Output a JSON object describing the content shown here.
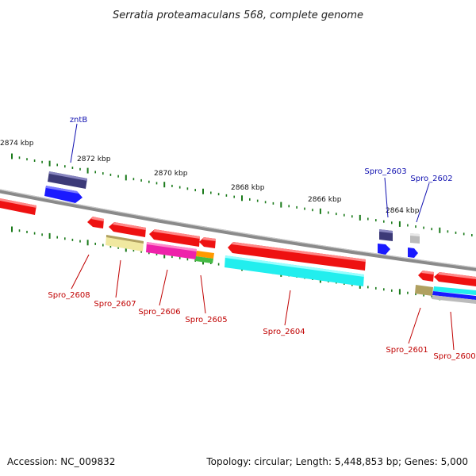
{
  "title": "Serratia proteamaculans 568, complete genome",
  "footer": {
    "accession": "Accession: NC_009832",
    "topology": "Topology: circular; Length: 5,448,853 bp; Genes: 5,000"
  },
  "colors": {
    "backbone": "#808080",
    "tick": "#1a7a1a",
    "forward_dark": "#3c3a78",
    "forward_blue": "#1a1aff",
    "reverse_red": "#ee1111",
    "yellow": "#f0e8a0",
    "magenta": "#ee22aa",
    "orange": "#ff9900",
    "green": "#44bb44",
    "cyan": "#22eeee",
    "olive": "#b0a060",
    "gray": "#bbbbbb",
    "label_blue": "#1010b0",
    "label_red": "#c00000"
  },
  "scale_labels": [
    "2874 kbp",
    "2872 kbp",
    "2870 kbp",
    "2868 kbp",
    "2866 kbp",
    "2864 kbp"
  ],
  "gene_labels": {
    "top": [
      "zntB",
      "Spro_2603",
      "Spro_2602"
    ],
    "bottom": [
      "Spro_2608",
      "Spro_2607",
      "Spro_2606",
      "Spro_2605",
      "Spro_2604",
      "Spro_2601",
      "Spro_2600"
    ]
  }
}
